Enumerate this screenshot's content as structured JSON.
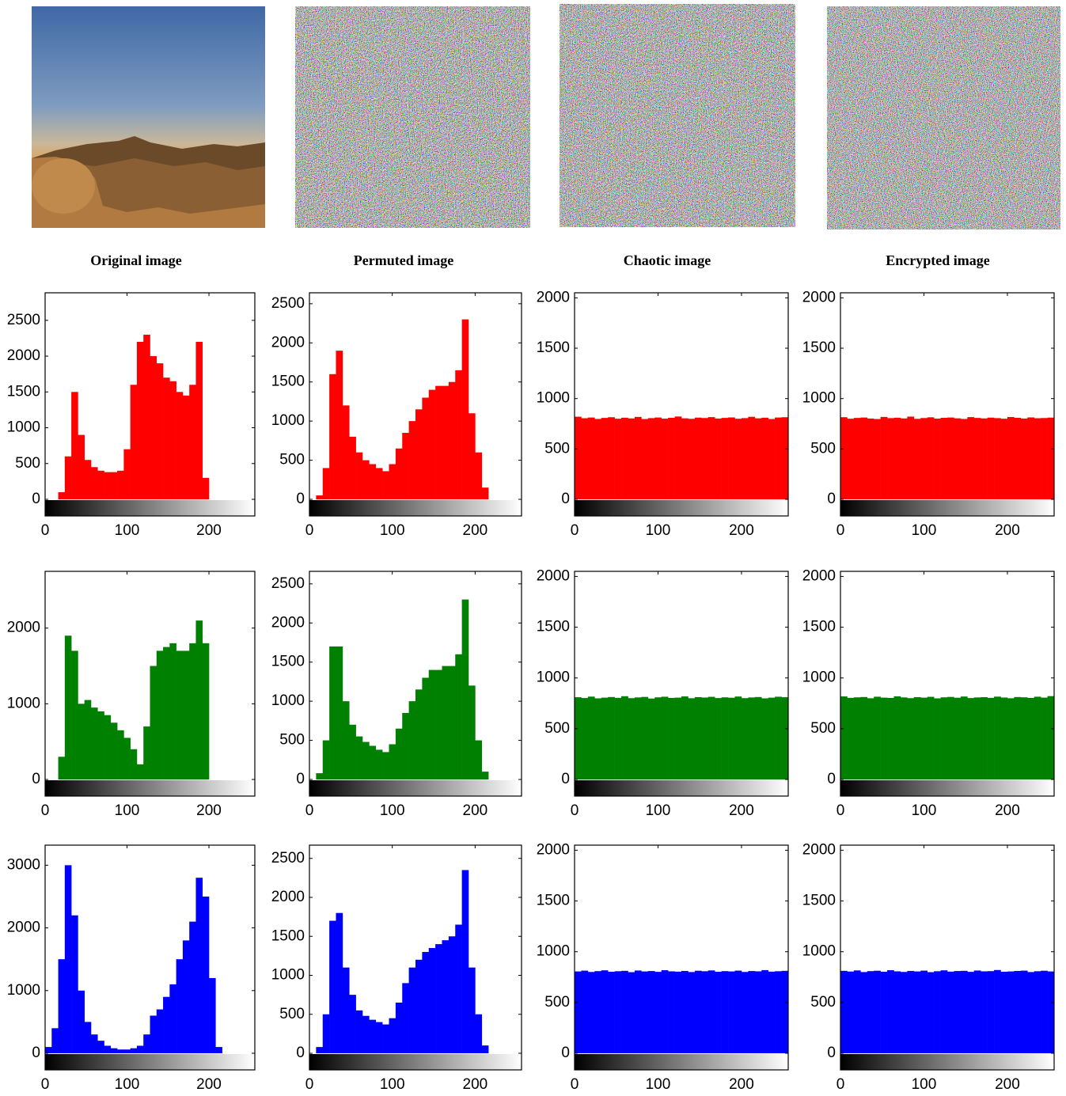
{
  "panels": [
    {
      "caption": "Original image"
    },
    {
      "caption": "Permuted image"
    },
    {
      "caption": "Chaotic image"
    },
    {
      "caption": "Encrypted  image"
    }
  ],
  "chart_data": [
    {
      "type": "histogram",
      "color": "#ff0000",
      "xlim": [
        0,
        256
      ],
      "xticks": [
        0,
        100,
        200
      ],
      "ylim": [
        0,
        2885
      ],
      "yticks": [
        0,
        500,
        1000,
        1500,
        2000,
        2500
      ],
      "bins": [
        0,
        8,
        16,
        24,
        32,
        40,
        48,
        56,
        64,
        72,
        80,
        88,
        96,
        104,
        112,
        120,
        128,
        136,
        144,
        152,
        160,
        168,
        176,
        184,
        192,
        200,
        208,
        216,
        224,
        232,
        240,
        248,
        256
      ],
      "values": [
        0,
        0,
        100,
        600,
        1500,
        900,
        550,
        450,
        400,
        380,
        380,
        400,
        700,
        1600,
        2200,
        2300,
        2000,
        1900,
        1700,
        1650,
        1500,
        1450,
        1600,
        2200,
        300,
        0,
        0,
        0,
        0,
        0,
        0,
        0
      ]
    },
    {
      "type": "histogram",
      "color": "#ff0000",
      "xlim": [
        0,
        256
      ],
      "xticks": [
        0,
        100,
        200
      ],
      "ylim": [
        0,
        2640
      ],
      "yticks": [
        0,
        500,
        1000,
        1500,
        2000,
        2500
      ],
      "bins": [
        0,
        8,
        16,
        24,
        32,
        40,
        48,
        56,
        64,
        72,
        80,
        88,
        96,
        104,
        112,
        120,
        128,
        136,
        144,
        152,
        160,
        168,
        176,
        184,
        192,
        200,
        208,
        216,
        224,
        232,
        240,
        248,
        256
      ],
      "values": [
        0,
        50,
        400,
        1600,
        1900,
        1200,
        800,
        600,
        500,
        450,
        400,
        360,
        450,
        650,
        850,
        1000,
        1150,
        1300,
        1400,
        1450,
        1450,
        1500,
        1650,
        2300,
        1100,
        600,
        150,
        0,
        0,
        0,
        0,
        0
      ]
    },
    {
      "type": "histogram",
      "color": "#ff0000",
      "xlim": [
        0,
        256
      ],
      "xticks": [
        0,
        100,
        200
      ],
      "ylim": [
        0,
        2050
      ],
      "yticks": [
        0,
        500,
        1000,
        1500,
        2000
      ],
      "bins": [
        0,
        8,
        16,
        24,
        32,
        40,
        48,
        56,
        64,
        72,
        80,
        88,
        96,
        104,
        112,
        120,
        128,
        136,
        144,
        152,
        160,
        168,
        176,
        184,
        192,
        200,
        208,
        216,
        224,
        232,
        240,
        248,
        256
      ],
      "values": [
        820,
        805,
        812,
        798,
        808,
        815,
        800,
        810,
        803,
        818,
        797,
        806,
        812,
        801,
        809,
        822,
        804,
        799,
        811,
        807,
        816,
        802,
        808,
        813,
        800,
        806,
        819,
        804,
        810,
        797,
        812,
        815
      ]
    },
    {
      "type": "histogram",
      "color": "#ff0000",
      "xlim": [
        0,
        256
      ],
      "xticks": [
        0,
        100,
        200
      ],
      "ylim": [
        0,
        2050
      ],
      "yticks": [
        0,
        500,
        1000,
        1500,
        2000
      ],
      "bins": [
        0,
        8,
        16,
        24,
        32,
        40,
        48,
        56,
        64,
        72,
        80,
        88,
        96,
        104,
        112,
        120,
        128,
        136,
        144,
        152,
        160,
        168,
        176,
        184,
        192,
        200,
        208,
        216,
        224,
        232,
        240,
        248,
        256
      ],
      "values": [
        815,
        800,
        808,
        812,
        802,
        797,
        818,
        806,
        810,
        803,
        821,
        799,
        807,
        814,
        801,
        809,
        812,
        804,
        798,
        816,
        808,
        803,
        811,
        806,
        800,
        817,
        809,
        802,
        813,
        805,
        807,
        811
      ]
    },
    {
      "type": "histogram",
      "color": "#008000",
      "xlim": [
        0,
        256
      ],
      "xticks": [
        0,
        100,
        200
      ],
      "ylim": [
        0,
        2750
      ],
      "yticks": [
        0,
        1000,
        2000
      ],
      "bins": [
        0,
        8,
        16,
        24,
        32,
        40,
        48,
        56,
        64,
        72,
        80,
        88,
        96,
        104,
        112,
        120,
        128,
        136,
        144,
        152,
        160,
        168,
        176,
        184,
        192,
        200,
        208,
        216,
        224,
        232,
        240,
        248,
        256
      ],
      "values": [
        0,
        0,
        300,
        1900,
        1700,
        1000,
        1050,
        950,
        900,
        850,
        750,
        650,
        550,
        400,
        200,
        700,
        1500,
        1700,
        1750,
        1800,
        1700,
        1700,
        1800,
        2100,
        1800,
        0,
        0,
        0,
        0,
        0,
        0,
        0
      ]
    },
    {
      "type": "histogram",
      "color": "#008000",
      "xlim": [
        0,
        256
      ],
      "xticks": [
        0,
        100,
        200
      ],
      "ylim": [
        0,
        2660
      ],
      "yticks": [
        0,
        500,
        1000,
        1500,
        2000,
        2500
      ],
      "bins": [
        0,
        8,
        16,
        24,
        32,
        40,
        48,
        56,
        64,
        72,
        80,
        88,
        96,
        104,
        112,
        120,
        128,
        136,
        144,
        152,
        160,
        168,
        176,
        184,
        192,
        200,
        208,
        216,
        224,
        232,
        240,
        248,
        256
      ],
      "values": [
        0,
        80,
        500,
        1700,
        1700,
        1000,
        700,
        550,
        480,
        430,
        380,
        350,
        450,
        650,
        850,
        1000,
        1150,
        1300,
        1400,
        1400,
        1450,
        1450,
        1600,
        2300,
        1200,
        500,
        100,
        0,
        0,
        0,
        0,
        0
      ]
    },
    {
      "type": "histogram",
      "color": "#008000",
      "xlim": [
        0,
        256
      ],
      "xticks": [
        0,
        100,
        200
      ],
      "ylim": [
        0,
        2050
      ],
      "yticks": [
        0,
        500,
        1000,
        1500,
        2000
      ],
      "bins": [
        0,
        8,
        16,
        24,
        32,
        40,
        48,
        56,
        64,
        72,
        80,
        88,
        96,
        104,
        112,
        120,
        128,
        136,
        144,
        152,
        160,
        168,
        176,
        184,
        192,
        200,
        208,
        216,
        224,
        232,
        240,
        248,
        256
      ],
      "values": [
        810,
        802,
        816,
        799,
        806,
        812,
        804,
        820,
        801,
        808,
        813,
        797,
        809,
        815,
        803,
        806,
        818,
        800,
        811,
        807,
        814,
        802,
        809,
        805,
        817,
        801,
        808,
        812,
        799,
        806,
        815,
        810
      ]
    },
    {
      "type": "histogram",
      "color": "#008000",
      "xlim": [
        0,
        256
      ],
      "xticks": [
        0,
        100,
        200
      ],
      "ylim": [
        0,
        2050
      ],
      "yticks": [
        0,
        500,
        1000,
        1500,
        2000
      ],
      "bins": [
        0,
        8,
        16,
        24,
        32,
        40,
        48,
        56,
        64,
        72,
        80,
        88,
        96,
        104,
        112,
        120,
        128,
        136,
        144,
        152,
        160,
        168,
        176,
        184,
        192,
        200,
        208,
        216,
        224,
        232,
        240,
        248,
        256
      ],
      "values": [
        818,
        804,
        809,
        812,
        800,
        815,
        806,
        803,
        819,
        808,
        801,
        811,
        806,
        814,
        799,
        809,
        813,
        805,
        817,
        802,
        808,
        811,
        804,
        816,
        807,
        800,
        812,
        809,
        803,
        815,
        806,
        821
      ]
    },
    {
      "type": "histogram",
      "color": "#0000ff",
      "xlim": [
        0,
        256
      ],
      "xticks": [
        0,
        100,
        200
      ],
      "ylim": [
        0,
        3320
      ],
      "yticks": [
        0,
        1000,
        2000,
        3000
      ],
      "bins": [
        0,
        8,
        16,
        24,
        32,
        40,
        48,
        56,
        64,
        72,
        80,
        88,
        96,
        104,
        112,
        120,
        128,
        136,
        144,
        152,
        160,
        168,
        176,
        184,
        192,
        200,
        208,
        216,
        224,
        232,
        240,
        248,
        256
      ],
      "values": [
        100,
        400,
        1500,
        3000,
        2200,
        1000,
        500,
        300,
        200,
        120,
        80,
        60,
        60,
        80,
        120,
        300,
        600,
        700,
        900,
        1100,
        1500,
        1800,
        2100,
        2800,
        2500,
        1200,
        100,
        0,
        0,
        0,
        0,
        0
      ]
    },
    {
      "type": "histogram",
      "color": "#0000ff",
      "xlim": [
        0,
        256
      ],
      "xticks": [
        0,
        100,
        200
      ],
      "ylim": [
        0,
        2670
      ],
      "yticks": [
        0,
        500,
        1000,
        1500,
        2000,
        2500
      ],
      "bins": [
        0,
        8,
        16,
        24,
        32,
        40,
        48,
        56,
        64,
        72,
        80,
        88,
        96,
        104,
        112,
        120,
        128,
        136,
        144,
        152,
        160,
        168,
        176,
        184,
        192,
        200,
        208,
        216,
        224,
        232,
        240,
        248,
        256
      ],
      "values": [
        0,
        80,
        500,
        1700,
        1800,
        1100,
        750,
        550,
        480,
        430,
        400,
        370,
        450,
        650,
        900,
        1100,
        1200,
        1300,
        1350,
        1400,
        1450,
        1500,
        1650,
        2350,
        1100,
        500,
        100,
        0,
        0,
        0,
        0,
        0
      ]
    },
    {
      "type": "histogram",
      "color": "#0000ff",
      "xlim": [
        0,
        256
      ],
      "xticks": [
        0,
        100,
        200
      ],
      "ylim": [
        0,
        2050
      ],
      "yticks": [
        0,
        500,
        1000,
        1500,
        2000
      ],
      "bins": [
        0,
        8,
        16,
        24,
        32,
        40,
        48,
        56,
        64,
        72,
        80,
        88,
        96,
        104,
        112,
        120,
        128,
        136,
        144,
        152,
        160,
        168,
        176,
        184,
        192,
        200,
        208,
        216,
        224,
        232,
        240,
        248,
        256
      ],
      "values": [
        806,
        814,
        801,
        809,
        817,
        803,
        808,
        812,
        799,
        815,
        806,
        810,
        802,
        818,
        807,
        804,
        811,
        800,
        813,
        808,
        816,
        803,
        809,
        806,
        814,
        801,
        810,
        807,
        819,
        804,
        808,
        812
      ]
    },
    {
      "type": "histogram",
      "color": "#0000ff",
      "xlim": [
        0,
        256
      ],
      "xticks": [
        0,
        100,
        200
      ],
      "ylim": [
        0,
        2050
      ],
      "yticks": [
        0,
        500,
        1000,
        1500,
        2000
      ],
      "bins": [
        0,
        8,
        16,
        24,
        32,
        40,
        48,
        56,
        64,
        72,
        80,
        88,
        96,
        104,
        112,
        120,
        128,
        136,
        144,
        152,
        160,
        168,
        176,
        184,
        192,
        200,
        208,
        216,
        224,
        232,
        240,
        248,
        256
      ],
      "values": [
        812,
        805,
        816,
        800,
        809,
        813,
        803,
        818,
        807,
        801,
        811,
        806,
        814,
        799,
        808,
        817,
        804,
        810,
        812,
        802,
        815,
        807,
        809,
        820,
        803,
        806,
        811,
        814,
        800,
        808,
        813,
        806
      ]
    }
  ]
}
